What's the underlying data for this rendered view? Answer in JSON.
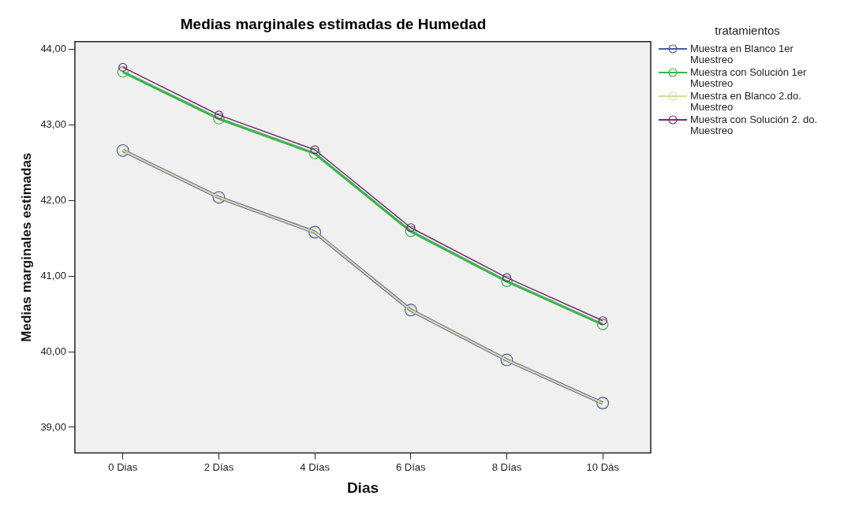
{
  "chart_data": {
    "type": "line",
    "title": "Medias marginales estimadas de Humedad",
    "xlabel": "Dias",
    "ylabel": "Medias marginales estimadas",
    "legend_title": "tratamientos",
    "legend": "right",
    "marker": "circle",
    "grid": false,
    "categories": [
      "0 Dias",
      "2 Días",
      "4 Días",
      "6 Días",
      "8 Días",
      "10 Dás"
    ],
    "ylim": [
      38.66,
      44.1
    ],
    "yticks": [
      {
        "value": 39,
        "label": "39,00"
      },
      {
        "value": 40,
        "label": "40,00"
      },
      {
        "value": 41,
        "label": "41,00"
      },
      {
        "value": 42,
        "label": "42,00"
      },
      {
        "value": 43,
        "label": "43,00"
      },
      {
        "value": 44,
        "label": "44,00"
      }
    ],
    "series": [
      {
        "name": "Muestra en Blanco 1er Muestreo",
        "color": "#4a5aa0",
        "values": [
          42.66,
          42.04,
          41.58,
          40.55,
          39.89,
          39.32
        ]
      },
      {
        "name": "Muestra con Solución 1er Muestreo",
        "color": "#3cb34a",
        "values": [
          43.7,
          43.08,
          42.62,
          41.59,
          40.93,
          40.36
        ]
      },
      {
        "name": "Muestra en Blanco 2.do. Muestreo",
        "color": "#d8d8a0",
        "values": [
          42.66,
          42.04,
          41.58,
          40.55,
          39.89,
          39.32
        ]
      },
      {
        "name": "Muestra con Solución 2. do. Muestreo",
        "color": "#7a2a7a",
        "values": [
          43.76,
          43.13,
          42.67,
          41.64,
          40.98,
          40.41
        ]
      }
    ]
  }
}
